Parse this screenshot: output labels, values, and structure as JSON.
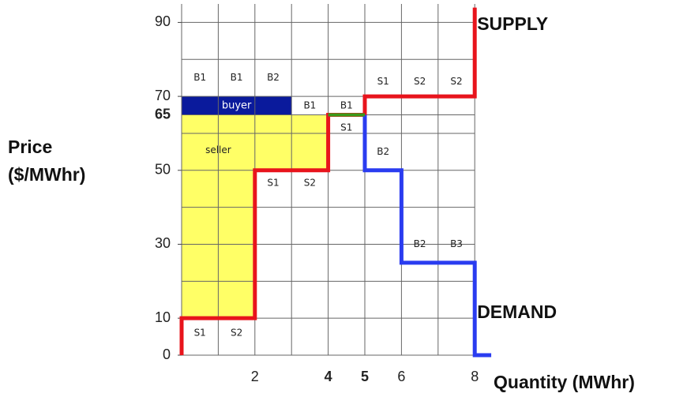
{
  "chart_data": {
    "type": "step",
    "ylabel": [
      "Price",
      "($/MWhr)"
    ],
    "xlabel": "Quantity (MWhr)",
    "xlim": [
      0,
      8.5
    ],
    "ylim": [
      0,
      95
    ],
    "xticks": [
      2,
      4,
      5,
      6,
      8
    ],
    "yticks": [
      0,
      10,
      30,
      50,
      70,
      90
    ],
    "xgrid": [
      0,
      1,
      2,
      3,
      4,
      5,
      6,
      7,
      8
    ],
    "ygrid": [
      0,
      10,
      20,
      30,
      40,
      50,
      60,
      70,
      80,
      90
    ],
    "grid": true,
    "clearing_price": 65,
    "clearing_quantity": [
      4,
      5
    ],
    "clearing_color": "#3a9a1a",
    "series": [
      {
        "name": "SUPPLY",
        "color": "#e8141c",
        "x": [
          0,
          0,
          2,
          2,
          4,
          4,
          5,
          5,
          8,
          8
        ],
        "values": [
          0,
          10,
          10,
          50,
          50,
          65,
          65,
          70,
          70,
          94
        ]
      },
      {
        "name": "DEMAND",
        "color": "#2a3cf0",
        "x": [
          5,
          5,
          6,
          6,
          8,
          8,
          8.45
        ],
        "values": [
          65,
          50,
          50,
          25,
          25,
          0,
          0
        ]
      }
    ],
    "areas": [
      {
        "label": "buyer",
        "color": "#0a1a9c",
        "x": [
          0,
          3
        ],
        "y": [
          65,
          70
        ]
      },
      {
        "label": "seller",
        "color": "#ffff66"
      }
    ],
    "annotations": [
      {
        "text": "B1",
        "x": 0.5,
        "y": 75
      },
      {
        "text": "B1",
        "x": 1.5,
        "y": 75
      },
      {
        "text": "B2",
        "x": 2.5,
        "y": 75
      },
      {
        "text": "B1",
        "x": 3.5,
        "y": 67.5
      },
      {
        "text": "B1",
        "x": 4.5,
        "y": 67.5
      },
      {
        "text": "S1",
        "x": 4.5,
        "y": 61.5
      },
      {
        "text": "S1",
        "x": 5.5,
        "y": 74
      },
      {
        "text": "S2",
        "x": 6.5,
        "y": 74
      },
      {
        "text": "S2",
        "x": 7.5,
        "y": 74
      },
      {
        "text": "B2",
        "x": 5.5,
        "y": 55
      },
      {
        "text": "S1",
        "x": 2.5,
        "y": 46.5
      },
      {
        "text": "S2",
        "x": 3.5,
        "y": 46.5
      },
      {
        "text": "B2",
        "x": 6.5,
        "y": 30
      },
      {
        "text": "B3",
        "x": 7.5,
        "y": 30
      },
      {
        "text": "S1",
        "x": 0.5,
        "y": 6
      },
      {
        "text": "S2",
        "x": 1.5,
        "y": 6
      }
    ]
  }
}
